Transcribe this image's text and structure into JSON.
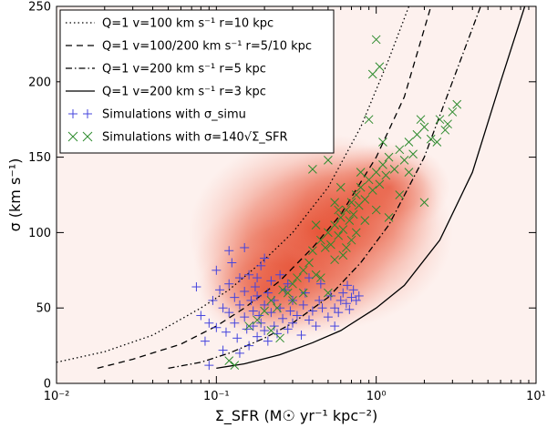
{
  "chart_data": {
    "type": "scatter",
    "title": "",
    "xlabel": "Σ_SFR (M☉ yr⁻¹ kpc⁻²)",
    "ylabel": "σ (km s⁻¹)",
    "xscale": "log",
    "xlim": [
      0.01,
      10
    ],
    "ylim": [
      0,
      250
    ],
    "x_ticks": [
      0.01,
      0.1,
      1,
      10
    ],
    "x_tick_labels": [
      "10⁻²",
      "10⁻¹",
      "10⁰",
      "10¹"
    ],
    "y_ticks": [
      0,
      50,
      100,
      150,
      200,
      250
    ],
    "y_tick_labels": [
      "0",
      "50",
      "100",
      "150",
      "200",
      "250"
    ],
    "grid": false,
    "legend_position": "top-left",
    "background": {
      "type": "density-heatmap",
      "color": "#e23c1e",
      "blobs": [
        {
          "x": 0.45,
          "y": 100,
          "weight": 1.0
        },
        {
          "x": 0.3,
          "y": 78,
          "weight": 0.7
        },
        {
          "x": 0.7,
          "y": 115,
          "weight": 0.6
        },
        {
          "x": 0.2,
          "y": 62,
          "weight": 0.4
        },
        {
          "x": 1.2,
          "y": 130,
          "weight": 0.35
        }
      ]
    },
    "curves": [
      {
        "name": "Q=1 v=100 km s⁻¹ r=10 kpc",
        "style": "dotted",
        "x": [
          0.01,
          0.02,
          0.04,
          0.08,
          0.12,
          0.2,
          0.3,
          0.5,
          0.8,
          1.2,
          1.6
        ],
        "y": [
          14,
          21,
          32,
          50,
          62,
          82,
          100,
          130,
          170,
          215,
          250
        ]
      },
      {
        "name": "Q=1 v=100/200 km s⁻¹ r=5/10 kpc",
        "style": "dashed",
        "x": [
          0.018,
          0.03,
          0.06,
          0.1,
          0.15,
          0.25,
          0.4,
          0.6,
          1.0,
          1.5,
          2.2
        ],
        "y": [
          10,
          16,
          26,
          38,
          50,
          68,
          90,
          112,
          150,
          190,
          250
        ]
      },
      {
        "name": "Q=1 v=200 km s⁻¹ r=5 kpc",
        "style": "dashdot",
        "x": [
          0.05,
          0.08,
          0.12,
          0.2,
          0.3,
          0.5,
          0.8,
          1.2,
          2.0,
          3.0,
          4.5
        ],
        "y": [
          10,
          14,
          20,
          30,
          40,
          57,
          80,
          105,
          150,
          200,
          250
        ]
      },
      {
        "name": "Q=1 v=200 km s⁻¹ r=3 kpc",
        "style": "solid",
        "x": [
          0.1,
          0.15,
          0.25,
          0.4,
          0.6,
          1.0,
          1.5,
          2.5,
          4.0,
          6.0,
          8.5
        ],
        "y": [
          10,
          13,
          19,
          27,
          35,
          50,
          65,
          95,
          140,
          200,
          250
        ]
      }
    ],
    "series": [
      {
        "name": "Simulations with σ_simu",
        "marker": "plus",
        "color": "#4444dd",
        "points": [
          [
            0.075,
            64
          ],
          [
            0.08,
            45
          ],
          [
            0.085,
            28
          ],
          [
            0.09,
            40
          ],
          [
            0.095,
            55
          ],
          [
            0.1,
            37
          ],
          [
            0.1,
            75
          ],
          [
            0.105,
            62
          ],
          [
            0.11,
            50
          ],
          [
            0.11,
            22
          ],
          [
            0.115,
            34
          ],
          [
            0.12,
            66
          ],
          [
            0.12,
            47
          ],
          [
            0.125,
            80
          ],
          [
            0.13,
            40
          ],
          [
            0.13,
            57
          ],
          [
            0.135,
            30
          ],
          [
            0.14,
            70
          ],
          [
            0.14,
            52
          ],
          [
            0.15,
            44
          ],
          [
            0.15,
            61
          ],
          [
            0.155,
            36
          ],
          [
            0.16,
            25
          ],
          [
            0.16,
            72
          ],
          [
            0.165,
            55
          ],
          [
            0.17,
            48
          ],
          [
            0.17,
            38
          ],
          [
            0.175,
            64
          ],
          [
            0.18,
            31
          ],
          [
            0.18,
            58
          ],
          [
            0.185,
            45
          ],
          [
            0.19,
            78
          ],
          [
            0.19,
            40
          ],
          [
            0.2,
            52
          ],
          [
            0.2,
            35
          ],
          [
            0.21,
            60
          ],
          [
            0.21,
            28
          ],
          [
            0.22,
            47
          ],
          [
            0.22,
            68
          ],
          [
            0.23,
            55
          ],
          [
            0.23,
            38
          ],
          [
            0.24,
            33
          ],
          [
            0.25,
            50
          ],
          [
            0.26,
            43
          ],
          [
            0.27,
            62
          ],
          [
            0.28,
            36
          ],
          [
            0.29,
            48
          ],
          [
            0.3,
            55
          ],
          [
            0.3,
            40
          ],
          [
            0.32,
            45
          ],
          [
            0.34,
            32
          ],
          [
            0.35,
            52
          ],
          [
            0.36,
            60
          ],
          [
            0.38,
            42
          ],
          [
            0.4,
            48
          ],
          [
            0.42,
            38
          ],
          [
            0.44,
            55
          ],
          [
            0.46,
            50
          ],
          [
            0.5,
            44
          ],
          [
            0.52,
            58
          ],
          [
            0.55,
            50
          ],
          [
            0.58,
            47
          ],
          [
            0.6,
            55
          ],
          [
            0.62,
            60
          ],
          [
            0.65,
            53
          ],
          [
            0.68,
            49
          ],
          [
            0.7,
            57
          ],
          [
            0.72,
            62
          ],
          [
            0.75,
            55
          ],
          [
            0.78,
            58
          ],
          [
            0.66,
            65
          ],
          [
            0.55,
            38
          ],
          [
            0.09,
            12
          ],
          [
            0.14,
            20
          ],
          [
            0.18,
            70
          ],
          [
            0.25,
            72
          ],
          [
            0.2,
            83
          ],
          [
            0.15,
            90
          ],
          [
            0.12,
            88
          ],
          [
            0.45,
            66
          ],
          [
            0.38,
            70
          ],
          [
            0.28,
            66
          ]
        ]
      },
      {
        "name": "Simulations with σ=140√Σ_SFR",
        "marker": "x",
        "color": "#2e8b2e",
        "points": [
          [
            0.12,
            15
          ],
          [
            0.13,
            12
          ],
          [
            0.16,
            38
          ],
          [
            0.18,
            42
          ],
          [
            0.2,
            48
          ],
          [
            0.22,
            55
          ],
          [
            0.24,
            50
          ],
          [
            0.25,
            30
          ],
          [
            0.26,
            62
          ],
          [
            0.28,
            60
          ],
          [
            0.3,
            66
          ],
          [
            0.32,
            70
          ],
          [
            0.35,
            75
          ],
          [
            0.38,
            80
          ],
          [
            0.4,
            88
          ],
          [
            0.42,
            72
          ],
          [
            0.45,
            95
          ],
          [
            0.48,
            90
          ],
          [
            0.5,
            100
          ],
          [
            0.52,
            92
          ],
          [
            0.55,
            105
          ],
          [
            0.58,
            98
          ],
          [
            0.6,
            110
          ],
          [
            0.62,
            102
          ],
          [
            0.65,
            115
          ],
          [
            0.68,
            108
          ],
          [
            0.7,
            120
          ],
          [
            0.72,
            112
          ],
          [
            0.75,
            125
          ],
          [
            0.78,
            118
          ],
          [
            0.8,
            130
          ],
          [
            0.85,
            122
          ],
          [
            0.9,
            135
          ],
          [
            0.95,
            128
          ],
          [
            1.0,
            140
          ],
          [
            1.05,
            132
          ],
          [
            1.1,
            145
          ],
          [
            1.15,
            138
          ],
          [
            1.2,
            150
          ],
          [
            1.3,
            142
          ],
          [
            1.4,
            155
          ],
          [
            1.5,
            148
          ],
          [
            1.6,
            160
          ],
          [
            1.7,
            152
          ],
          [
            1.8,
            165
          ],
          [
            2.0,
            170
          ],
          [
            2.2,
            162
          ],
          [
            2.5,
            175
          ],
          [
            2.7,
            168
          ],
          [
            3.0,
            180
          ],
          [
            3.2,
            185
          ],
          [
            2.8,
            172
          ],
          [
            1.9,
            175
          ],
          [
            0.9,
            175
          ],
          [
            0.95,
            205
          ],
          [
            1.0,
            228
          ],
          [
            1.05,
            210
          ],
          [
            0.5,
            148
          ],
          [
            0.4,
            142
          ],
          [
            0.6,
            130
          ],
          [
            0.3,
            55
          ],
          [
            0.35,
            60
          ],
          [
            0.45,
            70
          ],
          [
            0.55,
            82
          ],
          [
            0.65,
            90
          ],
          [
            0.75,
            100
          ],
          [
            0.85,
            108
          ],
          [
            0.55,
            120
          ],
          [
            0.7,
            95
          ],
          [
            1.2,
            110
          ],
          [
            1.4,
            125
          ],
          [
            2.4,
            160
          ],
          [
            0.22,
            35
          ],
          [
            0.5,
            60
          ],
          [
            0.8,
            140
          ],
          [
            1.1,
            160
          ],
          [
            1.6,
            140
          ],
          [
            2.0,
            120
          ],
          [
            1.0,
            115
          ],
          [
            0.42,
            105
          ],
          [
            0.58,
            115
          ],
          [
            0.62,
            85
          ]
        ]
      }
    ],
    "legend": [
      {
        "style": "dotted",
        "label": "Q=1 v=100 km s⁻¹ r=10 kpc"
      },
      {
        "style": "dashed",
        "label": "Q=1 v=100/200 km s⁻¹ r=5/10 kpc"
      },
      {
        "style": "dashdot",
        "label": "Q=1 v=200 km s⁻¹ r=5 kpc"
      },
      {
        "style": "solid",
        "label": "Q=1 v=200 km s⁻¹ r=3 kpc"
      },
      {
        "style": "plus",
        "label": "Simulations with σ_simu"
      },
      {
        "style": "x",
        "label": "Simulations with σ=140√Σ_SFR"
      }
    ]
  }
}
